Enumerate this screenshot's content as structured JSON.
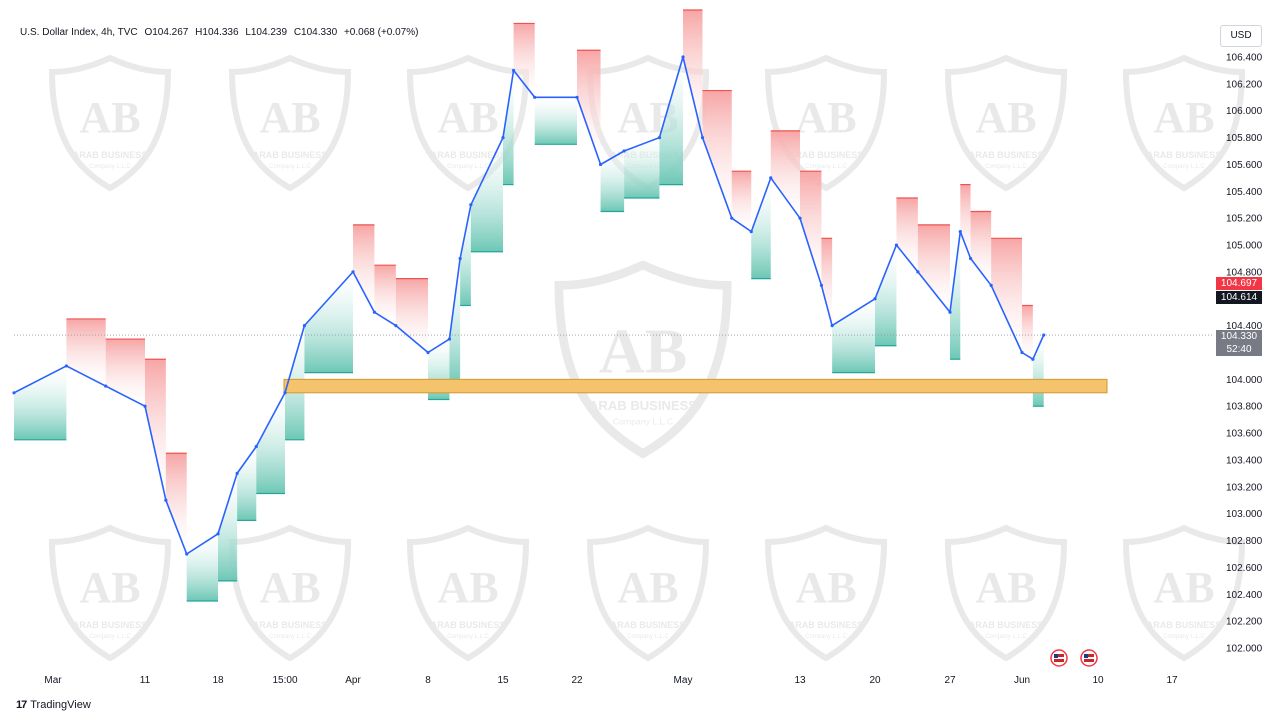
{
  "legend": {
    "symbol": "U.S. Dollar Index, 4h, TVC",
    "open": "O104.267",
    "high": "H104.336",
    "low": "L104.239",
    "close": "C104.330",
    "change": "+0.068 (+0.07%)"
  },
  "currency_button": "USD",
  "brand": "TradingView",
  "watermark": {
    "title": "ARAB BUSINESS",
    "subtitle": "Company L.L.C"
  },
  "price_tags": {
    "red": "104.697",
    "black": "104.614",
    "current": "104.330",
    "countdown": "52:40"
  },
  "colors": {
    "up": "#26a69a",
    "down": "#ef5350",
    "line": "#2962ff",
    "support_zone": "#f5c36b",
    "tag_red": "#f23645",
    "tag_black": "#131722",
    "tag_current": "#787b86"
  },
  "chart_data": {
    "type": "line",
    "title": "U.S. Dollar Index, 4h, TVC",
    "xlabel": "",
    "ylabel": "",
    "y_ticks": [
      "106.400",
      "106.200",
      "106.000",
      "105.800",
      "105.600",
      "105.400",
      "105.200",
      "105.000",
      "104.800",
      "104.600",
      "104.400",
      "104.200",
      "104.000",
      "103.800",
      "103.600",
      "103.400",
      "103.200",
      "103.000",
      "102.800",
      "102.600",
      "102.400",
      "102.200",
      "102.000"
    ],
    "x_ticks": [
      "Mar",
      "11",
      "18",
      "15:00",
      "Apr",
      "8",
      "15",
      "22",
      "May",
      "13",
      "20",
      "27",
      "Jun",
      "10",
      "17"
    ],
    "ylim": [
      101.8,
      106.55
    ],
    "x": [
      "Mar 1",
      "Mar 5",
      "Mar 8",
      "Mar 11",
      "Mar 13",
      "Mar 15",
      "Mar 18",
      "Mar 20",
      "Mar 22",
      "Mar 25",
      "Mar 27",
      "Apr 1",
      "Apr 3",
      "Apr 5",
      "Apr 8",
      "Apr 10",
      "Apr 11",
      "Apr 12",
      "Apr 15",
      "Apr 16",
      "Apr 18",
      "Apr 22",
      "Apr 24",
      "Apr 26",
      "Apr 29",
      "May 1",
      "May 3",
      "May 6",
      "May 8",
      "May 10",
      "May 13",
      "May 15",
      "May 16",
      "May 20",
      "May 22",
      "May 24",
      "May 27",
      "May 28",
      "May 29",
      "May 31",
      "Jun 3",
      "Jun 4",
      "Jun 5"
    ],
    "series": [
      {
        "name": "",
        "values": [
          103.9,
          104.1,
          103.95,
          103.8,
          103.1,
          102.7,
          102.85,
          103.3,
          103.5,
          103.9,
          104.4,
          104.8,
          104.5,
          104.4,
          104.2,
          104.3,
          104.9,
          105.3,
          105.8,
          106.3,
          106.1,
          106.1,
          105.6,
          105.7,
          105.8,
          106.4,
          105.8,
          105.2,
          105.1,
          105.5,
          105.2,
          104.7,
          104.4,
          104.6,
          105.0,
          104.8,
          104.5,
          105.1,
          104.9,
          104.7,
          104.2,
          104.15,
          104.33
        ]
      }
    ],
    "support_zone": [
      103.9,
      104.0
    ],
    "current_price": 104.33
  }
}
